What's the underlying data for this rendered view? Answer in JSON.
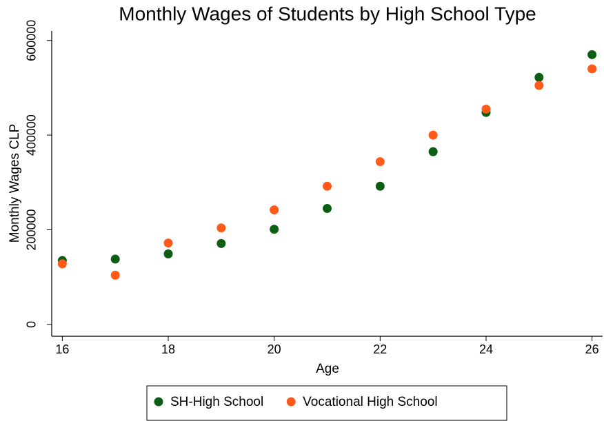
{
  "chart_data": {
    "type": "scatter",
    "title": "Monthly Wages of Students by High School Type",
    "x_label": "Age",
    "y_label": "Monthly Wages CLP",
    "x": [
      16,
      17,
      18,
      19,
      20,
      21,
      22,
      23,
      24,
      25,
      26
    ],
    "series": [
      {
        "name": "SH-High School",
        "color": "#0c5e12",
        "values": [
          135000,
          138000,
          149000,
          171000,
          201000,
          245000,
          292000,
          365000,
          448000,
          522000,
          570000
        ]
      },
      {
        "name": "Vocational High School",
        "color": "#ff5a1a",
        "values": [
          128000,
          104000,
          172000,
          204000,
          242000,
          292000,
          344000,
          400000,
          455000,
          505000,
          540000
        ]
      }
    ],
    "xlim": [
      15.8,
      26.2
    ],
    "xticks": [
      16,
      18,
      20,
      22,
      24,
      26
    ],
    "ylim": [
      -25000,
      620000
    ],
    "yticks": [
      0,
      200000,
      400000,
      600000
    ],
    "grid": false,
    "legend": "bottom"
  }
}
